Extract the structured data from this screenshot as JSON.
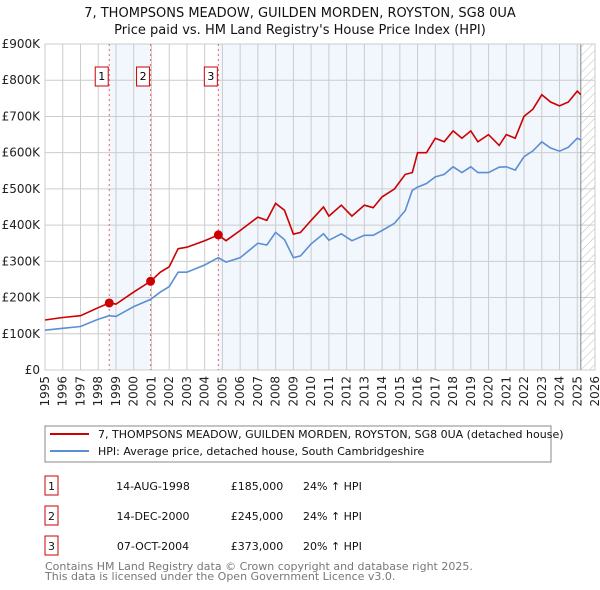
{
  "chart_data": {
    "type": "line",
    "title": "7, THOMPSONS MEADOW, GUILDEN MORDEN, ROYSTON, SG8 0UA",
    "subtitle": "Price paid vs. HM Land Registry's House Price Index (HPI)",
    "xlim": [
      1995,
      2026
    ],
    "ylim": [
      0,
      900000
    ],
    "x_ticks": [
      1995,
      1996,
      1997,
      1998,
      1999,
      2000,
      2001,
      2002,
      2003,
      2004,
      2005,
      2006,
      2007,
      2008,
      2009,
      2010,
      2011,
      2012,
      2013,
      2014,
      2015,
      2016,
      2017,
      2018,
      2019,
      2020,
      2021,
      2022,
      2023,
      2024,
      2025,
      2026
    ],
    "y_ticks": [
      0,
      100000,
      200000,
      300000,
      400000,
      500000,
      600000,
      700000,
      800000,
      900000
    ],
    "y_tick_labels": [
      "£0",
      "£100K",
      "£200K",
      "£300K",
      "£400K",
      "£500K",
      "£600K",
      "£700K",
      "£800K",
      "£900K"
    ],
    "grid": true,
    "hatched_from": 2025.2,
    "colors": {
      "property": "#cc0000",
      "hpi": "#5b8fd4",
      "shade": "#f2f6fd"
    },
    "series": [
      {
        "name": "7, THOMPSONS MEADOW, GUILDEN MORDEN, ROYSTON, SG8 0UA (detached house)",
        "x": [
          1995,
          1996,
          1997,
          1998,
          1998.62,
          1999,
          2000,
          2000.95,
          2001.5,
          2002,
          2002.5,
          2003,
          2004,
          2004.77,
          2005.2,
          2006,
          2007,
          2007.5,
          2008,
          2008.5,
          2009,
          2009.4,
          2010,
          2010.7,
          2011,
          2011.7,
          2012.3,
          2013,
          2013.5,
          2014,
          2014.7,
          2015.3,
          2015.7,
          2016,
          2016.5,
          2017,
          2017.5,
          2018,
          2018.5,
          2019,
          2019.4,
          2020,
          2020.6,
          2021,
          2021.5,
          2022,
          2022.5,
          2023,
          2023.5,
          2024,
          2024.5,
          2025,
          2025.2
        ],
        "values": [
          138000,
          145000,
          150000,
          172000,
          185000,
          182000,
          215000,
          245000,
          270000,
          285000,
          335000,
          339000,
          357000,
          373000,
          357000,
          385000,
          422000,
          413000,
          460000,
          441000,
          375000,
          380000,
          413000,
          450000,
          425000,
          455000,
          425000,
          455000,
          448000,
          478000,
          500000,
          540000,
          545000,
          600000,
          600000,
          640000,
          630000,
          660000,
          640000,
          660000,
          630000,
          650000,
          620000,
          650000,
          640000,
          700000,
          720000,
          760000,
          740000,
          729000,
          740000,
          770000,
          760000
        ]
      },
      {
        "name": "HPI: Average price, detached house, South Cambridgeshire",
        "x": [
          1995,
          1996,
          1997,
          1998,
          1998.62,
          1999,
          2000,
          2000.95,
          2001.5,
          2002,
          2002.5,
          2003,
          2004,
          2004.77,
          2005.2,
          2006,
          2007,
          2007.5,
          2008,
          2008.5,
          2009,
          2009.4,
          2010,
          2010.7,
          2011,
          2011.7,
          2012.3,
          2013,
          2013.5,
          2014,
          2014.7,
          2015.3,
          2015.7,
          2016,
          2016.5,
          2017,
          2017.5,
          2018,
          2018.5,
          2019,
          2019.4,
          2020,
          2020.6,
          2021,
          2021.5,
          2022,
          2022.5,
          2023,
          2023.5,
          2024,
          2024.5,
          2025,
          2025.2
        ],
        "values": [
          110000,
          115000,
          120000,
          140000,
          150000,
          148000,
          175000,
          195000,
          215000,
          230000,
          270000,
          270000,
          290000,
          310000,
          298000,
          310000,
          350000,
          345000,
          380000,
          360000,
          310000,
          315000,
          348000,
          376000,
          358000,
          376000,
          357000,
          372000,
          372000,
          385000,
          405000,
          440000,
          496000,
          505000,
          515000,
          533000,
          540000,
          561000,
          545000,
          561000,
          545000,
          545000,
          560000,
          561000,
          552000,
          589000,
          605000,
          630000,
          613000,
          604000,
          615000,
          640000,
          635000
        ]
      }
    ],
    "sales": [
      {
        "n": "1",
        "x": 1998.62,
        "value": 185000
      },
      {
        "n": "2",
        "x": 2000.95,
        "value": 245000
      },
      {
        "n": "3",
        "x": 2004.77,
        "value": 373000
      }
    ]
  },
  "legend": {
    "property": "7, THOMPSONS MEADOW, GUILDEN MORDEN, ROYSTON, SG8 0UA (detached house)",
    "hpi": "HPI: Average price, detached house, South Cambridgeshire"
  },
  "table": [
    {
      "n": "1",
      "date": "14-AUG-1998",
      "price": "£185,000",
      "hpi": "24% ↑ HPI"
    },
    {
      "n": "2",
      "date": "14-DEC-2000",
      "price": "£245,000",
      "hpi": "24% ↑ HPI"
    },
    {
      "n": "3",
      "date": "07-OCT-2004",
      "price": "£373,000",
      "hpi": "20% ↑ HPI"
    }
  ],
  "footer": {
    "line1": "Contains HM Land Registry data © Crown copyright and database right 2025.",
    "line2": "This data is licensed under the Open Government Licence v3.0."
  }
}
